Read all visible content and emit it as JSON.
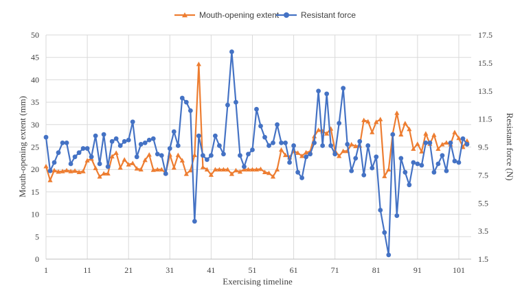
{
  "chart_data": {
    "type": "line",
    "title": "",
    "xlabel": "Exercising timeline",
    "ylabel_left": "Mouth-opening extent (mm)",
    "ylabel_right": "Resistant force (N)",
    "ylim_left": [
      0,
      50
    ],
    "ylim_right": [
      1.5,
      17.5
    ],
    "yticks_left": [
      "0",
      "5",
      "10",
      "15",
      "20",
      "25",
      "30",
      "35",
      "40",
      "45",
      "50"
    ],
    "yticks_right": [
      "1.5",
      "3.5",
      "5.5",
      "7.5",
      "9.5",
      "11.5",
      "13.5",
      "15.5",
      "17.5"
    ],
    "xlim": [
      1,
      104
    ],
    "xticks": [
      "1",
      "11",
      "21",
      "31",
      "41",
      "51",
      "61",
      "71",
      "81",
      "91",
      "101"
    ],
    "grid": true,
    "legend_position": "top-center",
    "series": [
      {
        "name": "Mouth-opening extent",
        "axis": "left",
        "color": "#ED7D31",
        "marker": "triangle",
        "x": [
          1,
          2,
          3,
          4,
          5,
          6,
          7,
          8,
          9,
          10,
          11,
          12,
          13,
          14,
          15,
          16,
          17,
          18,
          19,
          20,
          21,
          22,
          23,
          24,
          25,
          26,
          27,
          28,
          29,
          30,
          31,
          32,
          33,
          34,
          35,
          36,
          37,
          38,
          39,
          40,
          41,
          42,
          43,
          44,
          45,
          46,
          47,
          48,
          49,
          50,
          51,
          52,
          53,
          54,
          55,
          56,
          57,
          58,
          59,
          60,
          61,
          62,
          63,
          64,
          65,
          66,
          67,
          68,
          69,
          70,
          71,
          72,
          73,
          74,
          75,
          76,
          77,
          78,
          79,
          80,
          81,
          82,
          83,
          84,
          85,
          86,
          87,
          88,
          89,
          90,
          91,
          92,
          93,
          94,
          95,
          96,
          97,
          98,
          99,
          100,
          101,
          102,
          103
        ],
        "values": [
          20.7,
          17.6,
          19.8,
          19.5,
          19.6,
          19.8,
          19.6,
          19.7,
          19.4,
          19.6,
          22.0,
          22.4,
          20.3,
          18.4,
          19.1,
          19.1,
          22.9,
          23.7,
          20.4,
          22.2,
          21.1,
          21.4,
          20.2,
          20.0,
          22.1,
          23.3,
          19.9,
          20.0,
          20.0,
          19.2,
          23.3,
          20.4,
          23.2,
          22.0,
          19.0,
          19.8,
          23.2,
          43.5,
          20.5,
          20.0,
          18.8,
          20.0,
          20.0,
          20.0,
          20.0,
          19.0,
          19.8,
          19.5,
          20.0,
          20.0,
          20.0,
          20.0,
          20.1,
          19.4,
          19.2,
          18.4,
          20.0,
          24.4,
          23.2,
          22.7,
          24.1,
          23.7,
          23.0,
          23.8,
          24.0,
          27.4,
          28.8,
          28.5,
          28.0,
          29.1,
          24.2,
          23.0,
          24.1,
          24.1,
          25.6,
          25.2,
          25.3,
          31.0,
          30.7,
          28.3,
          30.6,
          31.2,
          18.5,
          20.0,
          28.0,
          32.6,
          27.8,
          30.3,
          29.0,
          24.6,
          25.7,
          24.0,
          28.0,
          25.7,
          27.7,
          24.6,
          25.6,
          26.0,
          25.6,
          28.3,
          27.0,
          25.0,
          26.4
        ]
      },
      {
        "name": "Resistant force",
        "axis": "right",
        "color": "#4472C4",
        "marker": "circle",
        "x": [
          1,
          2,
          3,
          4,
          5,
          6,
          7,
          8,
          9,
          10,
          11,
          12,
          13,
          14,
          15,
          16,
          17,
          18,
          19,
          20,
          21,
          22,
          23,
          24,
          25,
          26,
          27,
          28,
          29,
          30,
          31,
          32,
          33,
          34,
          35,
          36,
          37,
          38,
          39,
          40,
          41,
          42,
          43,
          44,
          45,
          46,
          47,
          48,
          49,
          50,
          51,
          52,
          53,
          54,
          55,
          56,
          57,
          58,
          59,
          60,
          61,
          62,
          63,
          64,
          65,
          66,
          67,
          68,
          69,
          70,
          71,
          72,
          73,
          74,
          75,
          76,
          77,
          78,
          79,
          80,
          81,
          82,
          83,
          84,
          85,
          86,
          87,
          88,
          89,
          90,
          91,
          92,
          93,
          94,
          95,
          96,
          97,
          98,
          99,
          100,
          101,
          102,
          103
        ],
        "values": [
          10.2,
          7.8,
          8.4,
          9.1,
          9.8,
          9.8,
          8.3,
          8.8,
          9.1,
          9.4,
          9.4,
          8.8,
          10.3,
          8.3,
          10.4,
          8.1,
          9.9,
          10.1,
          9.6,
          9.9,
          10.0,
          11.3,
          8.8,
          9.7,
          9.8,
          10.0,
          10.1,
          9.0,
          8.9,
          7.6,
          9.4,
          10.6,
          9.6,
          13.0,
          12.7,
          12.1,
          4.2,
          10.3,
          8.9,
          8.6,
          8.9,
          10.3,
          9.6,
          9.0,
          12.5,
          16.3,
          12.7,
          8.9,
          8.1,
          9.0,
          9.3,
          12.2,
          11.0,
          10.2,
          9.6,
          9.8,
          11.1,
          9.8,
          9.8,
          8.4,
          9.6,
          7.7,
          7.3,
          8.8,
          9.0,
          9.8,
          13.5,
          9.6,
          13.3,
          9.6,
          9.0,
          11.2,
          13.7,
          9.7,
          7.8,
          8.7,
          9.9,
          7.5,
          9.6,
          8.0,
          8.8,
          5.0,
          3.4,
          1.8,
          10.4,
          4.6,
          8.7,
          7.7,
          6.8,
          8.4,
          8.3,
          8.2,
          9.8,
          9.8,
          7.7,
          8.3,
          8.9,
          7.8,
          9.8,
          8.5,
          8.4,
          10.1,
          9.7
        ]
      }
    ]
  }
}
